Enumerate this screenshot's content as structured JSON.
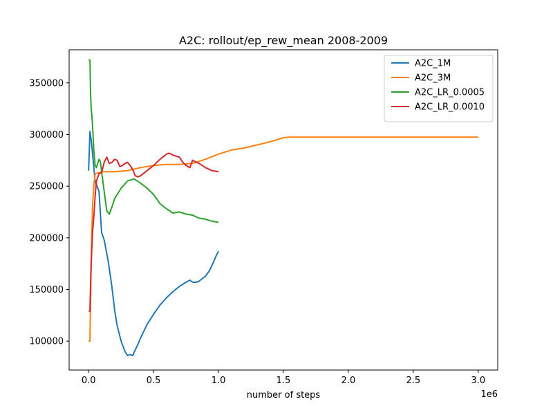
{
  "chart_data": {
    "type": "line",
    "title": "A2C: rollout/ep_rew_mean 2008-2009",
    "xlabel": "number of steps",
    "ylabel": "",
    "x_offset_label": "1e6",
    "xlim": [
      -0.15,
      3.15
    ],
    "ylim": [
      72000,
      382000
    ],
    "x_ticks": [
      0.0,
      0.5,
      1.0,
      1.5,
      2.0,
      2.5,
      3.0
    ],
    "x_tick_labels": [
      "0.0",
      "0.5",
      "1.0",
      "1.5",
      "2.0",
      "2.5",
      "3.0"
    ],
    "y_ticks": [
      100000,
      150000,
      200000,
      250000,
      300000,
      350000
    ],
    "y_tick_labels": [
      "100000",
      "150000",
      "200000",
      "250000",
      "300000",
      "350000"
    ],
    "grid": false,
    "legend_position": "top-right",
    "series": [
      {
        "name": "A2C_1M",
        "color": "#1f77b4",
        "x": [
          0.0,
          0.01,
          0.02,
          0.03,
          0.05,
          0.08,
          0.1,
          0.12,
          0.15,
          0.18,
          0.2,
          0.22,
          0.25,
          0.28,
          0.3,
          0.32,
          0.34,
          0.35,
          0.38,
          0.4,
          0.45,
          0.5,
          0.55,
          0.6,
          0.65,
          0.7,
          0.75,
          0.78,
          0.8,
          0.83,
          0.85,
          0.88,
          0.9,
          0.93,
          0.96,
          0.98,
          1.0
        ],
        "y": [
          265000,
          303000,
          295000,
          282000,
          255000,
          245000,
          205000,
          198000,
          178000,
          152000,
          130000,
          115000,
          100000,
          90000,
          86000,
          87000,
          86000,
          89000,
          97000,
          103000,
          116000,
          126000,
          135000,
          142000,
          148000,
          153000,
          157000,
          159000,
          157000,
          157000,
          158000,
          161000,
          163000,
          168000,
          176000,
          182000,
          187000
        ]
      },
      {
        "name": "A2C_3M",
        "color": "#ff7f0e",
        "x": [
          0.0,
          0.01,
          0.02,
          0.03,
          0.04,
          0.05,
          0.08,
          0.1,
          0.15,
          0.2,
          0.3,
          0.4,
          0.5,
          0.6,
          0.7,
          0.8,
          0.9,
          1.0,
          1.1,
          1.2,
          1.3,
          1.4,
          1.45,
          1.5,
          1.55,
          1.6,
          2.0,
          2.5,
          3.0
        ],
        "y": [
          100000,
          100000,
          175000,
          230000,
          250000,
          262000,
          263000,
          264000,
          264000,
          264000,
          265000,
          268000,
          270000,
          271000,
          271000,
          272000,
          276000,
          281000,
          285000,
          287000,
          290000,
          293000,
          295000,
          297000,
          297500,
          297500,
          297500,
          297500,
          297500
        ]
      },
      {
        "name": "A2C_LR_0.0005",
        "color": "#2ca02c",
        "x": [
          0.0,
          0.01,
          0.015,
          0.02,
          0.025,
          0.03,
          0.04,
          0.05,
          0.06,
          0.07,
          0.08,
          0.09,
          0.1,
          0.12,
          0.14,
          0.16,
          0.18,
          0.2,
          0.25,
          0.3,
          0.35,
          0.4,
          0.45,
          0.5,
          0.55,
          0.6,
          0.65,
          0.7,
          0.75,
          0.8,
          0.85,
          0.9,
          0.95,
          1.0
        ],
        "y": [
          372000,
          372000,
          340000,
          325000,
          318000,
          310000,
          285000,
          270000,
          268000,
          272000,
          276000,
          274000,
          264000,
          245000,
          226000,
          223000,
          230000,
          238000,
          248000,
          255000,
          257000,
          253000,
          248000,
          242000,
          233000,
          228000,
          224000,
          225000,
          223000,
          222000,
          219000,
          218000,
          216000,
          215000
        ]
      },
      {
        "name": "A2C_LR_0.0010",
        "color": "#d62728",
        "x": [
          0.0,
          0.01,
          0.015,
          0.02,
          0.03,
          0.04,
          0.05,
          0.06,
          0.08,
          0.1,
          0.12,
          0.14,
          0.16,
          0.18,
          0.2,
          0.22,
          0.24,
          0.26,
          0.28,
          0.3,
          0.32,
          0.34,
          0.36,
          0.38,
          0.4,
          0.42,
          0.45,
          0.5,
          0.55,
          0.6,
          0.62,
          0.65,
          0.7,
          0.72,
          0.75,
          0.78,
          0.8,
          0.85,
          0.9,
          0.95,
          1.0
        ],
        "y": [
          129000,
          129000,
          155000,
          175000,
          205000,
          220000,
          240000,
          255000,
          262000,
          263000,
          273000,
          278000,
          272000,
          273000,
          276000,
          275000,
          269000,
          270000,
          272000,
          273000,
          270000,
          266000,
          260000,
          259000,
          260000,
          262000,
          265000,
          270000,
          276000,
          281000,
          282000,
          280000,
          278000,
          274000,
          270000,
          268000,
          275000,
          272000,
          268000,
          265000,
          264000
        ]
      }
    ]
  }
}
